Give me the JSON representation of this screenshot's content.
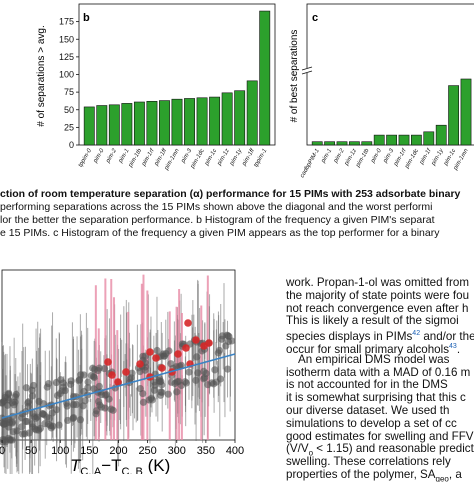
{
  "chart_data": [
    {
      "panel": "b",
      "type": "bar",
      "ylabel": "# of separations > avg.",
      "ylim": [
        0,
        200
      ],
      "yticks": [
        0,
        25,
        50,
        75,
        100,
        125,
        150,
        175
      ],
      "categories": [
        "tppim-0",
        "pim-0",
        "pim-2",
        "pim-1",
        "pim-1tb",
        "pim-1rf",
        "pim-1ff",
        "pim-1mn",
        "pim-3",
        "pim-1dc",
        "pim-1c",
        "pim-1z",
        "pim-1y",
        "pim-1ff",
        "tppim-1"
      ],
      "values": [
        54,
        56,
        57,
        59,
        61,
        62,
        63,
        65,
        66,
        67,
        68,
        74,
        77,
        91,
        190
      ],
      "bar_color": "#2ca02c"
    },
    {
      "panel": "c",
      "type": "bar",
      "ylabel": "# of best separations",
      "categories": [
        "cadbpPIM-1",
        "pim-1",
        "pim-2",
        "pim-1z",
        "pim-1tb",
        "pim-0",
        "pim-3",
        "pim-1rf",
        "pim-1dc",
        "pim-1f",
        "pim-1y",
        "pim-1c",
        "pim-1mn"
      ],
      "values": [
        1,
        1,
        1,
        1,
        1,
        3,
        3,
        3,
        3,
        4,
        6,
        18,
        20
      ],
      "axis_break": true,
      "bar_color": "#2ca02c"
    },
    {
      "panel": "bottom",
      "type": "scatter",
      "xlabel": "T",
      "xlabel_sub": "C, A",
      "xlabel_mid": "−T",
      "xlabel_sub2": "C, B",
      "xlabel_unit": " (K)",
      "xlim": [
        0,
        400
      ],
      "xticks": [
        0,
        50,
        100,
        150,
        200,
        250,
        300,
        350,
        400
      ],
      "fit_line_color": "#3b83c4",
      "highlight_color": "#d62728",
      "default_color": "#555555"
    }
  ],
  "caption": {
    "line1": "ction of room temperature separation (α) performance for 15 PIMs with 253 adsorbate binary",
    "line2": "performing separations across the 15 PIMs shown above the diagonal and the worst performi",
    "line3": "lor the better the separation performance. b Histogram of the frequency a given PIM's separat",
    "line4": "e 15 PIMs. c Histogram of the frequency a given PIM appears as the top performer for a binary"
  },
  "body_text": {
    "l1": "work. Propan-1-ol was omitted from",
    "l2": "the majority of state points were fou",
    "l3": "not reach convergence even after h",
    "l4": "This is likely a result of the sigmoi",
    "l5": "species displays in PIMs",
    "l5_sup": "42",
    "l5_end": " and/or the",
    "l6": "occur for small primary alcohols",
    "l6_sup": "43",
    "l6_end": ".",
    "l7": "An empirical DMS model was",
    "l8": "isotherm data with a MAD of 0.16 m",
    "l9": "is not accounted for in the DMS",
    "l10": "it is somewhat surprising that this c",
    "l11": "our diverse dataset. We used th",
    "l12": "simulations to develop a set of cc",
    "l13": "good estimates for swelling and FFV",
    "l14": "(V/V",
    "l14_sub": "o",
    "l14_end": " < 1.15) and reasonable predict",
    "l15": "swelling. These correlations rely",
    "l16": "properties of the polymer, SA",
    "l16_sub": "geo",
    "l16_end": ", a"
  }
}
